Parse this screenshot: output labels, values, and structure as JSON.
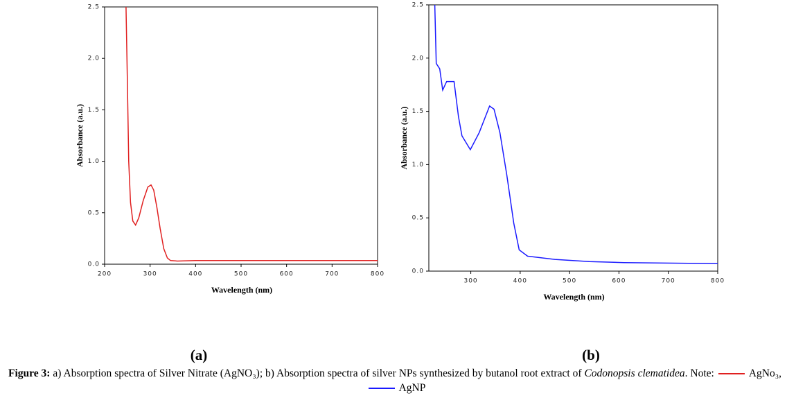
{
  "chart_data": [
    {
      "type": "line",
      "x_label": "Wavelength (nm)",
      "y_label": "Absorbance (a.u.)",
      "panel_label": "(a)",
      "xlim": [
        200,
        800
      ],
      "ylim": [
        0,
        2.5
      ],
      "xticks": [
        200,
        300,
        400,
        500,
        600,
        700,
        800
      ],
      "yticks": [
        {
          "value": 0,
          "label": "0.0"
        },
        0.5,
        {
          "value": 1,
          "label": "1.0"
        },
        1.5,
        {
          "value": 2,
          "label": "2.0"
        },
        2.5
      ],
      "x": [
        247,
        250,
        253,
        257,
        262,
        268,
        275,
        285,
        295,
        302,
        308,
        315,
        322,
        330,
        338,
        345,
        360,
        400,
        500,
        600,
        700,
        800
      ],
      "series": [
        {
          "name": "AgNo₃",
          "color": "#e02020",
          "values": [
            2.5,
            1.8,
            1.0,
            0.6,
            0.42,
            0.38,
            0.45,
            0.62,
            0.75,
            0.77,
            0.72,
            0.55,
            0.35,
            0.15,
            0.06,
            0.035,
            0.03,
            0.035,
            0.035,
            0.035,
            0.035,
            0.035
          ]
        }
      ]
    },
    {
      "type": "line",
      "x_label": "Wavelength (nm)",
      "y_label": "Absorbance (a.u.)",
      "panel_label": "(b)",
      "xlim": [
        215,
        800
      ],
      "ylim": [
        0,
        2.5
      ],
      "xticks": [
        300,
        400,
        500,
        600,
        700,
        800
      ],
      "yticks": [
        {
          "value": 0,
          "label": "0.0"
        },
        0.5,
        {
          "value": 1,
          "label": "1.0"
        },
        1.5,
        {
          "value": 2,
          "label": "2.0"
        },
        2.5
      ],
      "x": [
        227,
        230,
        237,
        243,
        251,
        261,
        266,
        275,
        282,
        299,
        317,
        338,
        347,
        359,
        373,
        387,
        398,
        415,
        470,
        540,
        610,
        800
      ],
      "series": [
        {
          "name": "AgNP",
          "color": "#1a1aff",
          "values": [
            2.5,
            1.95,
            1.9,
            1.7,
            1.78,
            1.78,
            1.78,
            1.45,
            1.27,
            1.14,
            1.3,
            1.55,
            1.52,
            1.3,
            0.9,
            0.45,
            0.2,
            0.14,
            0.11,
            0.09,
            0.08,
            0.07
          ]
        }
      ]
    }
  ],
  "caption": {
    "label": "Figure 3:",
    "text": " a) Absorption spectra of Silver Nitrate (AgNO₃); b) Absorption spectra of silver NPs synthesized by butanol root extract of ",
    "species": "Codonopsis clematidea",
    "note": ". Note:",
    "separator": ","
  }
}
